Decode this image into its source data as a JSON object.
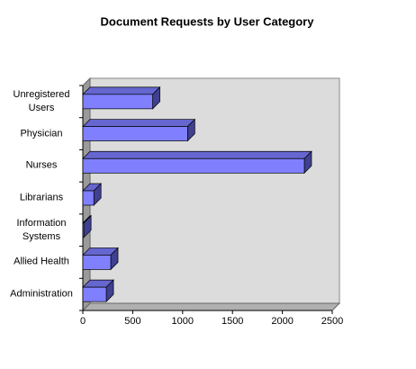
{
  "chart_data": {
    "type": "bar3d",
    "orientation": "horizontal",
    "title": "Document Requests by User Category",
    "categories": [
      "Unregistered\nUsers",
      "Physician",
      "Nurses",
      "Librarians",
      "Information\nSystems",
      "Allied Health",
      "Administration"
    ],
    "values": [
      700,
      1050,
      2220,
      110,
      10,
      280,
      235
    ],
    "color": "#8080ff",
    "xlim": [
      0,
      2500
    ],
    "xticks": [
      0,
      500,
      1000,
      1500,
      2000,
      2500
    ],
    "grid": false
  }
}
